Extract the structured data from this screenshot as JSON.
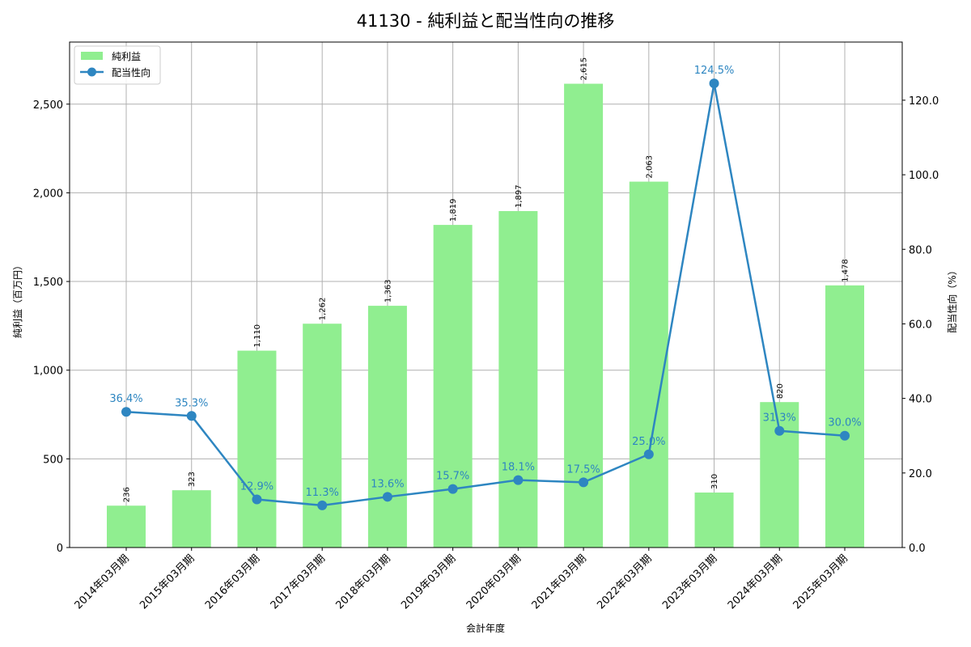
{
  "chart_data": {
    "type": "bar+line",
    "title": "41130 - 純利益と配当性向の推移",
    "xlabel": "会計年度",
    "ylabel": "純利益（百万円）",
    "y2label": "配当性向（%）",
    "categories": [
      "2014年03月期",
      "2015年03月期",
      "2016年03月期",
      "2017年03月期",
      "2018年03月期",
      "2019年03月期",
      "2020年03月期",
      "2021年03月期",
      "2022年03月期",
      "2023年03月期",
      "2024年03月期",
      "2025年03月期"
    ],
    "series": [
      {
        "name": "純利益",
        "type": "bar",
        "axis": "left",
        "color": "#90ee90",
        "values": [
          236,
          323,
          1110,
          1262,
          1363,
          1819,
          1897,
          2615,
          2063,
          310,
          820,
          1478
        ],
        "labels": [
          "236",
          "323",
          "1,110",
          "1,262",
          "1,363",
          "1,819",
          "1,897",
          "2,615",
          "2,063",
          "310",
          "820",
          "1,478"
        ]
      },
      {
        "name": "配当性向",
        "type": "line",
        "axis": "right",
        "color": "#2e86c1",
        "values": [
          36.4,
          35.3,
          12.9,
          11.3,
          13.6,
          15.7,
          18.1,
          17.5,
          25.0,
          124.5,
          31.3,
          30.0
        ],
        "labels": [
          "36.4%",
          "35.3%",
          "12.9%",
          "11.3%",
          "13.6%",
          "15.7%",
          "18.1%",
          "17.5%",
          "25.0%",
          "124.5%",
          "31.3%",
          "30.0%"
        ]
      }
    ],
    "ylim": [
      0,
      2850
    ],
    "y2lim": [
      0,
      135.6
    ],
    "yticks": [
      0,
      500,
      1000,
      1500,
      2000,
      2500
    ],
    "yticklabels": [
      "0",
      "500",
      "1,000",
      "1,500",
      "2,000",
      "2,500"
    ],
    "y2ticks": [
      0,
      20,
      40,
      60,
      80,
      100,
      120
    ],
    "y2ticklabels": [
      "0.0",
      "20.0",
      "40.0",
      "60.0",
      "80.0",
      "100.0",
      "120.0"
    ],
    "grid": true,
    "legend": {
      "position": "upper left",
      "entries": [
        "純利益",
        "配当性向"
      ]
    }
  }
}
